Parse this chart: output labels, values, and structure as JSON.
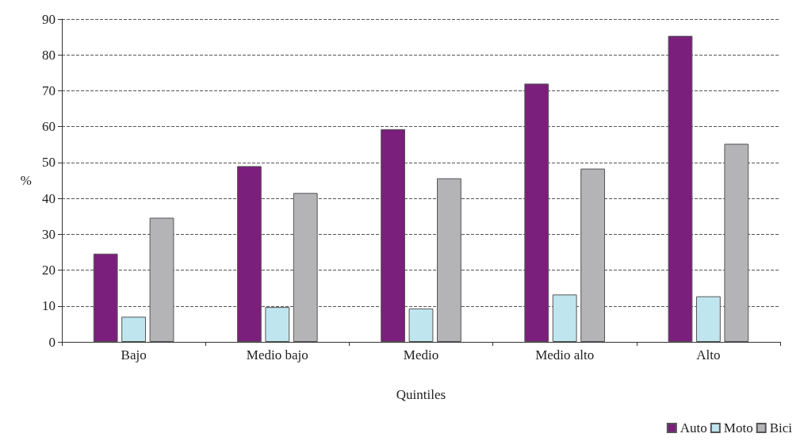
{
  "chart_data": {
    "type": "bar",
    "xlabel": "Quintiles",
    "ylabel": "%",
    "categories": [
      "Bajo",
      "Medio bajo",
      "Medio",
      "Medio alto",
      "Alto"
    ],
    "series": [
      {
        "name": "Auto",
        "color": "#7a1f7c",
        "values": [
          24.6,
          49,
          59.3,
          72,
          85.3
        ]
      },
      {
        "name": "Moto",
        "color": "#bfe6ef",
        "values": [
          7,
          9.7,
          9.3,
          13.2,
          12.7
        ]
      },
      {
        "name": "Bici",
        "color": "#b4b4b6",
        "values": [
          34.6,
          41.5,
          45.6,
          48.3,
          55.2
        ]
      }
    ],
    "ylim": [
      0,
      90
    ],
    "yticks": [
      0,
      10,
      20,
      30,
      40,
      50,
      60,
      70,
      80,
      90
    ],
    "grid": "y",
    "legend": "bottom right"
  }
}
